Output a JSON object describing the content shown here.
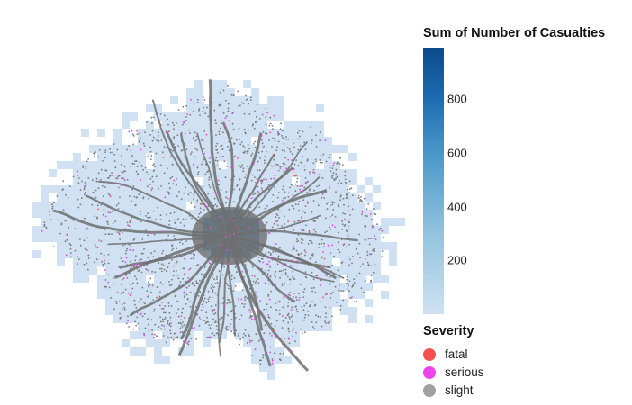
{
  "chart_data": {
    "type": "heatmap",
    "description_layers": [
      "grid cells colored by sum of casualties",
      "accident points colored by severity"
    ],
    "color_legend": {
      "title": "Sum of Number of Casualties",
      "domain": [
        1,
        990
      ],
      "ticks": [
        200,
        400,
        600,
        800
      ],
      "tick_labels": [
        "200",
        "400",
        "600",
        "800"
      ],
      "range_colors": [
        "#cfe1f2",
        "#0b4a8b"
      ]
    },
    "severity_legend": {
      "title": "Severity",
      "items": [
        {
          "label": "fatal",
          "color": "#f55050"
        },
        {
          "label": "serious",
          "color": "#ee44ee"
        },
        {
          "label": "slight",
          "color": "#a0a0a0"
        }
      ]
    },
    "point_color_dense": "#6e6e6e",
    "cell_color_low": "#cfe1f2",
    "cell_color_high": "#4a98c9"
  }
}
